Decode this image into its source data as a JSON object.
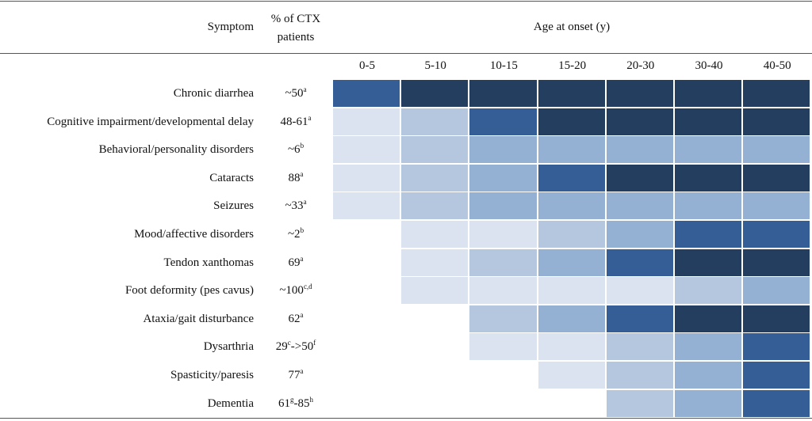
{
  "header": {
    "symptom": "Symptom",
    "pct_line1": "% of CTX",
    "pct_line2": "patients",
    "age_title": "Age at onset (y)"
  },
  "chart_data": {
    "type": "heatmap",
    "title": "Age at onset (y)",
    "age_groups": [
      "0-5",
      "5-10",
      "10-15",
      "15-20",
      "20-30",
      "30-40",
      "40-50"
    ],
    "intensity_scale": "0 = none, 1 = lightest, 4 = darkest",
    "rows": [
      {
        "symptom": "Chronic diarrhea",
        "pct": "~50",
        "pct_sup": "a",
        "levels": [
          3,
          4,
          4,
          4,
          4,
          4,
          4
        ]
      },
      {
        "symptom": "Cognitive impairment/developmental delay",
        "pct": "48-61",
        "pct_sup": "a",
        "levels": [
          1,
          2,
          3,
          4,
          4,
          4,
          4
        ]
      },
      {
        "symptom": "Behavioral/personality disorders",
        "pct": "~6",
        "pct_sup": "b",
        "levels": [
          1,
          2,
          2.5,
          2.5,
          2.5,
          2.5,
          2.5
        ]
      },
      {
        "symptom": "Cataracts",
        "pct": "88",
        "pct_sup": "a",
        "levels": [
          1,
          2,
          2.5,
          3,
          4,
          4,
          4
        ]
      },
      {
        "symptom": "Seizures",
        "pct": "~33",
        "pct_sup": "a",
        "levels": [
          1,
          2,
          2.5,
          2.5,
          2.5,
          2.5,
          2.5
        ]
      },
      {
        "symptom": "Mood/affective disorders",
        "pct": "~2",
        "pct_sup": "b",
        "levels": [
          0,
          1,
          1,
          2,
          2.5,
          3,
          3
        ]
      },
      {
        "symptom": "Tendon xanthomas",
        "pct": "69",
        "pct_sup": "a",
        "levels": [
          0,
          1,
          2,
          2.5,
          3,
          4,
          4
        ]
      },
      {
        "symptom": "Foot deformity (pes cavus)",
        "pct": "~100",
        "pct_sup": "c,d",
        "levels": [
          0,
          1,
          1,
          1,
          1,
          2,
          2.5
        ]
      },
      {
        "symptom": "Ataxia/gait disturbance",
        "pct": "62",
        "pct_sup": "a",
        "levels": [
          0,
          0,
          2,
          2.5,
          3,
          4,
          4
        ]
      },
      {
        "symptom": "Dysarthria",
        "pct": "29",
        "pct_sup": "c",
        "pct_tail": "->50",
        "pct_sup2": "f",
        "levels": [
          0,
          0,
          1,
          1,
          2,
          2.5,
          3
        ]
      },
      {
        "symptom": "Spasticity/paresis",
        "pct": "77",
        "pct_sup": "a",
        "levels": [
          0,
          0,
          0,
          1,
          2,
          2.5,
          3
        ]
      },
      {
        "symptom": "Dementia",
        "pct": "61",
        "pct_sup": "g",
        "pct_tail": "-85",
        "pct_sup2": "h",
        "levels": [
          0,
          0,
          0,
          0,
          2,
          2.5,
          3
        ]
      }
    ]
  },
  "colors": {
    "0": "#ffffff",
    "1": "#dae3ef",
    "2": "#b4c7df",
    "2.5": "#94b1d4",
    "3": "#355e97",
    "4": "#233e5f"
  }
}
